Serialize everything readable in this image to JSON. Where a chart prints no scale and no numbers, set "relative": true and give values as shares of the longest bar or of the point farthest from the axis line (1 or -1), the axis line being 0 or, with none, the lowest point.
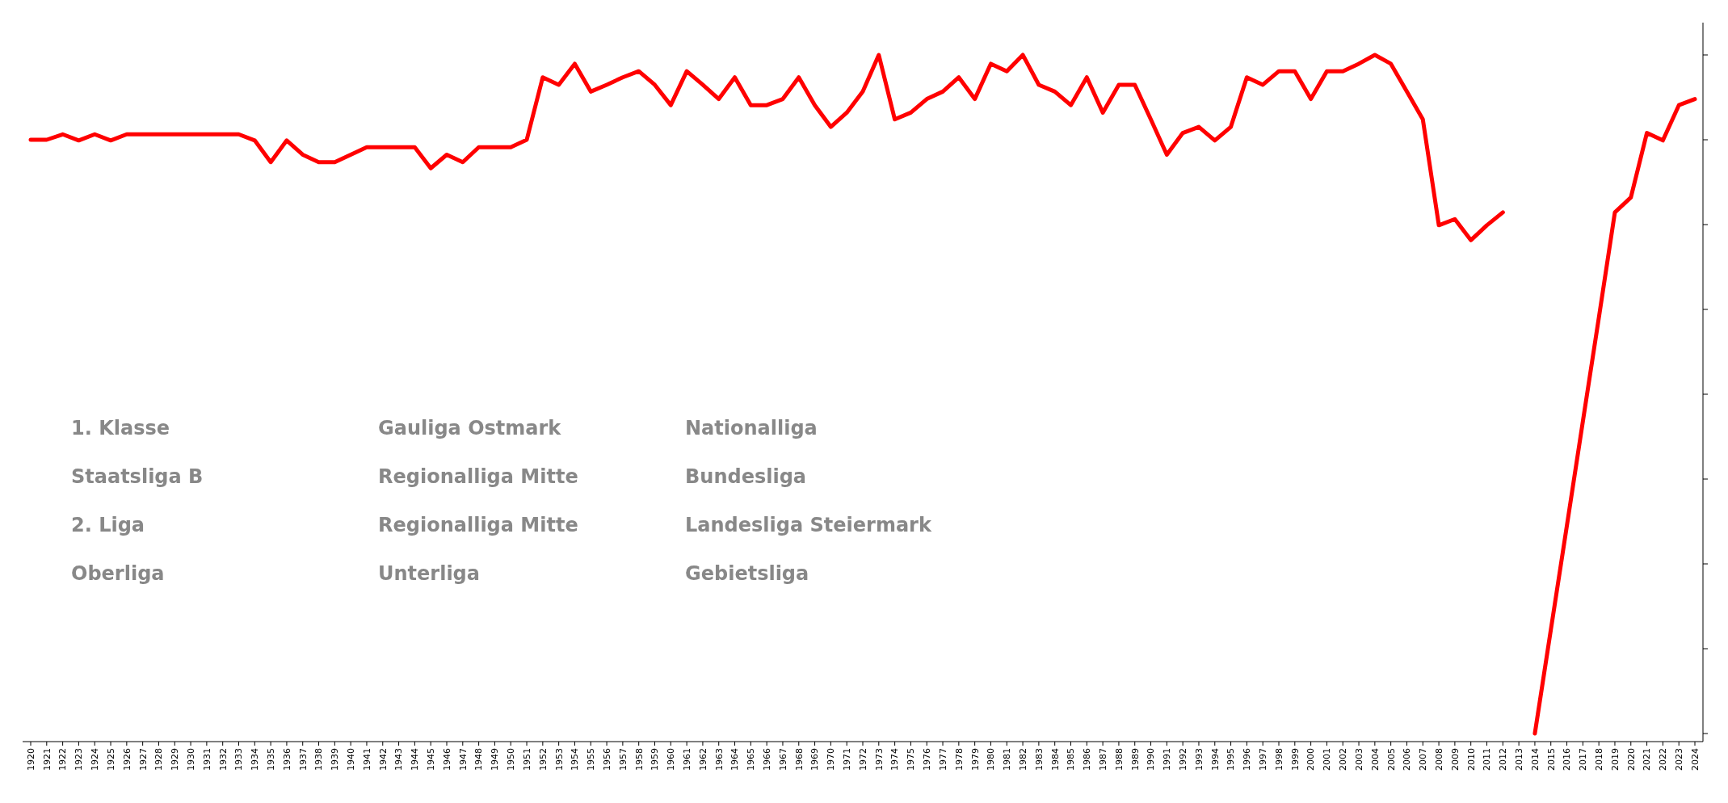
{
  "chart_data": {
    "type": "line",
    "relative": true,
    "tick_labels": "x",
    "grid": false,
    "marker": "none",
    "line_style": "solid",
    "categories": [
      "1920",
      "1921",
      "1922",
      "1923",
      "1924",
      "1925",
      "1926",
      "1927",
      "1928",
      "1929",
      "1930",
      "1931",
      "1932",
      "1933",
      "1934",
      "1935",
      "1936",
      "1937",
      "1938",
      "1939",
      "1940",
      "1941",
      "1942",
      "1943",
      "1944",
      "1945",
      "1946",
      "1947",
      "1948",
      "1949",
      "1950",
      "1951",
      "1952",
      "1953",
      "1954",
      "1955",
      "1956",
      "1957",
      "1958",
      "1959",
      "1960",
      "1961",
      "1962",
      "1963",
      "1964",
      "1965",
      "1966",
      "1967",
      "1968",
      "1969",
      "1970",
      "1971",
      "1972",
      "1973",
      "1974",
      "1975",
      "1976",
      "1977",
      "1978",
      "1979",
      "1980",
      "1981",
      "1982",
      "1983",
      "1984",
      "1985",
      "1986",
      "1987",
      "1988",
      "1989",
      "1990",
      "1991",
      "1992",
      "1993",
      "1994",
      "1995",
      "1996",
      "1997",
      "1998",
      "1999",
      "2000",
      "2001",
      "2002",
      "2003",
      "2004",
      "2005",
      "2006",
      "2007",
      "2008",
      "2009",
      "2010",
      "2011",
      "2012",
      "2013",
      "2014",
      "2015",
      "2016",
      "2017",
      "2018",
      "2019",
      "2020",
      "2021",
      "2022",
      "2023",
      "2024"
    ],
    "series": [
      {
        "color": "#ff0000",
        "values": [
          0.875,
          0.875,
          0.883,
          0.874,
          0.883,
          0.874,
          0.883,
          0.883,
          0.883,
          0.883,
          0.883,
          0.883,
          0.883,
          0.883,
          0.874,
          0.842,
          0.874,
          0.853,
          0.842,
          0.842,
          0.853,
          0.864,
          0.864,
          0.864,
          0.864,
          0.833,
          0.853,
          0.842,
          0.864,
          0.864,
          0.864,
          0.875,
          0.967,
          0.956,
          0.987,
          0.946,
          0.956,
          0.967,
          0.976,
          0.956,
          0.926,
          0.976,
          0.956,
          0.935,
          0.967,
          0.926,
          0.926,
          0.935,
          0.967,
          0.926,
          0.894,
          0.915,
          0.946,
          1.0,
          0.905,
          0.915,
          0.935,
          0.946,
          0.967,
          0.935,
          0.987,
          0.976,
          1.0,
          0.956,
          0.946,
          0.926,
          0.967,
          0.915,
          0.956,
          0.956,
          0.905,
          0.853,
          0.885,
          0.894,
          0.874,
          0.894,
          0.967,
          0.956,
          0.976,
          0.976,
          0.935,
          0.976,
          0.976,
          0.987,
          1.0,
          0.987,
          0.946,
          0.905,
          0.749,
          0.758,
          0.727,
          0.749,
          0.768,
          null,
          0,
          0.153,
          0.306,
          0.46,
          0.613,
          0.768,
          0.79,
          0.885,
          0.874,
          0.926,
          0.935
        ]
      }
    ],
    "annotations": [
      "1. Klasse",
      "Gauliga Ostmark",
      "Nationalliga",
      "Staatsliga B",
      "Regionalliga Mitte",
      "Bundesliga",
      "2. Liga",
      "Regionalliga Mitte",
      "Landesliga Steiermark",
      "Oberliga",
      "Unterliga",
      "Gebietsliga"
    ]
  }
}
